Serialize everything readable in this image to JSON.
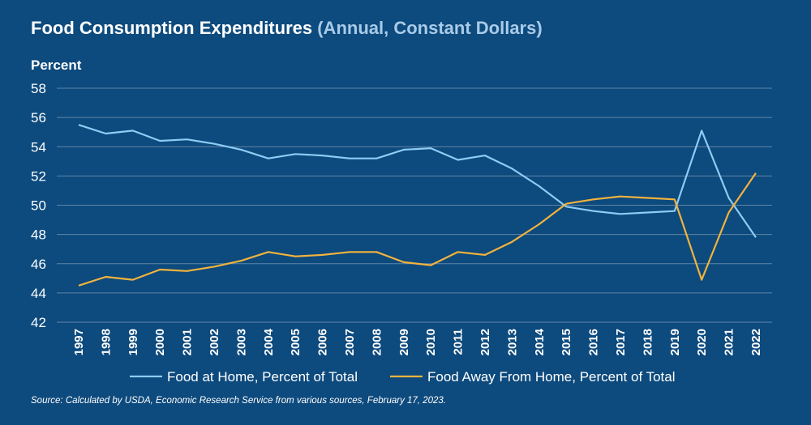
{
  "header": {
    "title": "Food Consumption Expenditures",
    "subtitle": "(Annual, Constant Dollars)"
  },
  "source": "Source: Calculated by USDA, Economic Research Service from various sources, February 17, 2023.",
  "colors": {
    "background": "#0d4a7d",
    "grid": "#5e86aa",
    "series_home": "#8ecbf5",
    "series_away": "#f2b33d"
  },
  "chart_data": {
    "type": "line",
    "title": "Food Consumption Expenditures",
    "subtitle": "(Annual, Constant Dollars)",
    "xlabel": "",
    "ylabel": "Percent",
    "ylim": [
      42,
      58
    ],
    "yticks": [
      42,
      44,
      46,
      48,
      50,
      52,
      54,
      56,
      58
    ],
    "grid": true,
    "legend_position": "bottom",
    "categories": [
      "1997",
      "1998",
      "1999",
      "2000",
      "2001",
      "2002",
      "2003",
      "2004",
      "2005",
      "2006",
      "2007",
      "2008",
      "2009",
      "2010",
      "2011",
      "2012",
      "2013",
      "2014",
      "2015",
      "2016",
      "2017",
      "2018",
      "2019",
      "2020",
      "2021",
      "2022"
    ],
    "series": [
      {
        "name": "Food at Home, Percent of Total",
        "color": "#8ecbf5",
        "values": [
          55.5,
          54.9,
          55.1,
          54.4,
          54.5,
          54.2,
          53.8,
          53.2,
          53.5,
          53.4,
          53.2,
          53.2,
          53.8,
          53.9,
          53.1,
          53.4,
          52.5,
          51.3,
          49.9,
          49.6,
          49.4,
          49.5,
          49.6,
          55.1,
          50.5,
          47.8
        ]
      },
      {
        "name": "Food Away From Home, Percent of Total",
        "color": "#f2b33d",
        "values": [
          44.5,
          45.1,
          44.9,
          45.6,
          45.5,
          45.8,
          46.2,
          46.8,
          46.5,
          46.6,
          46.8,
          46.8,
          46.1,
          45.9,
          46.8,
          46.6,
          47.5,
          48.7,
          50.1,
          50.4,
          50.6,
          50.5,
          50.4,
          44.9,
          49.5,
          52.2
        ]
      }
    ]
  }
}
